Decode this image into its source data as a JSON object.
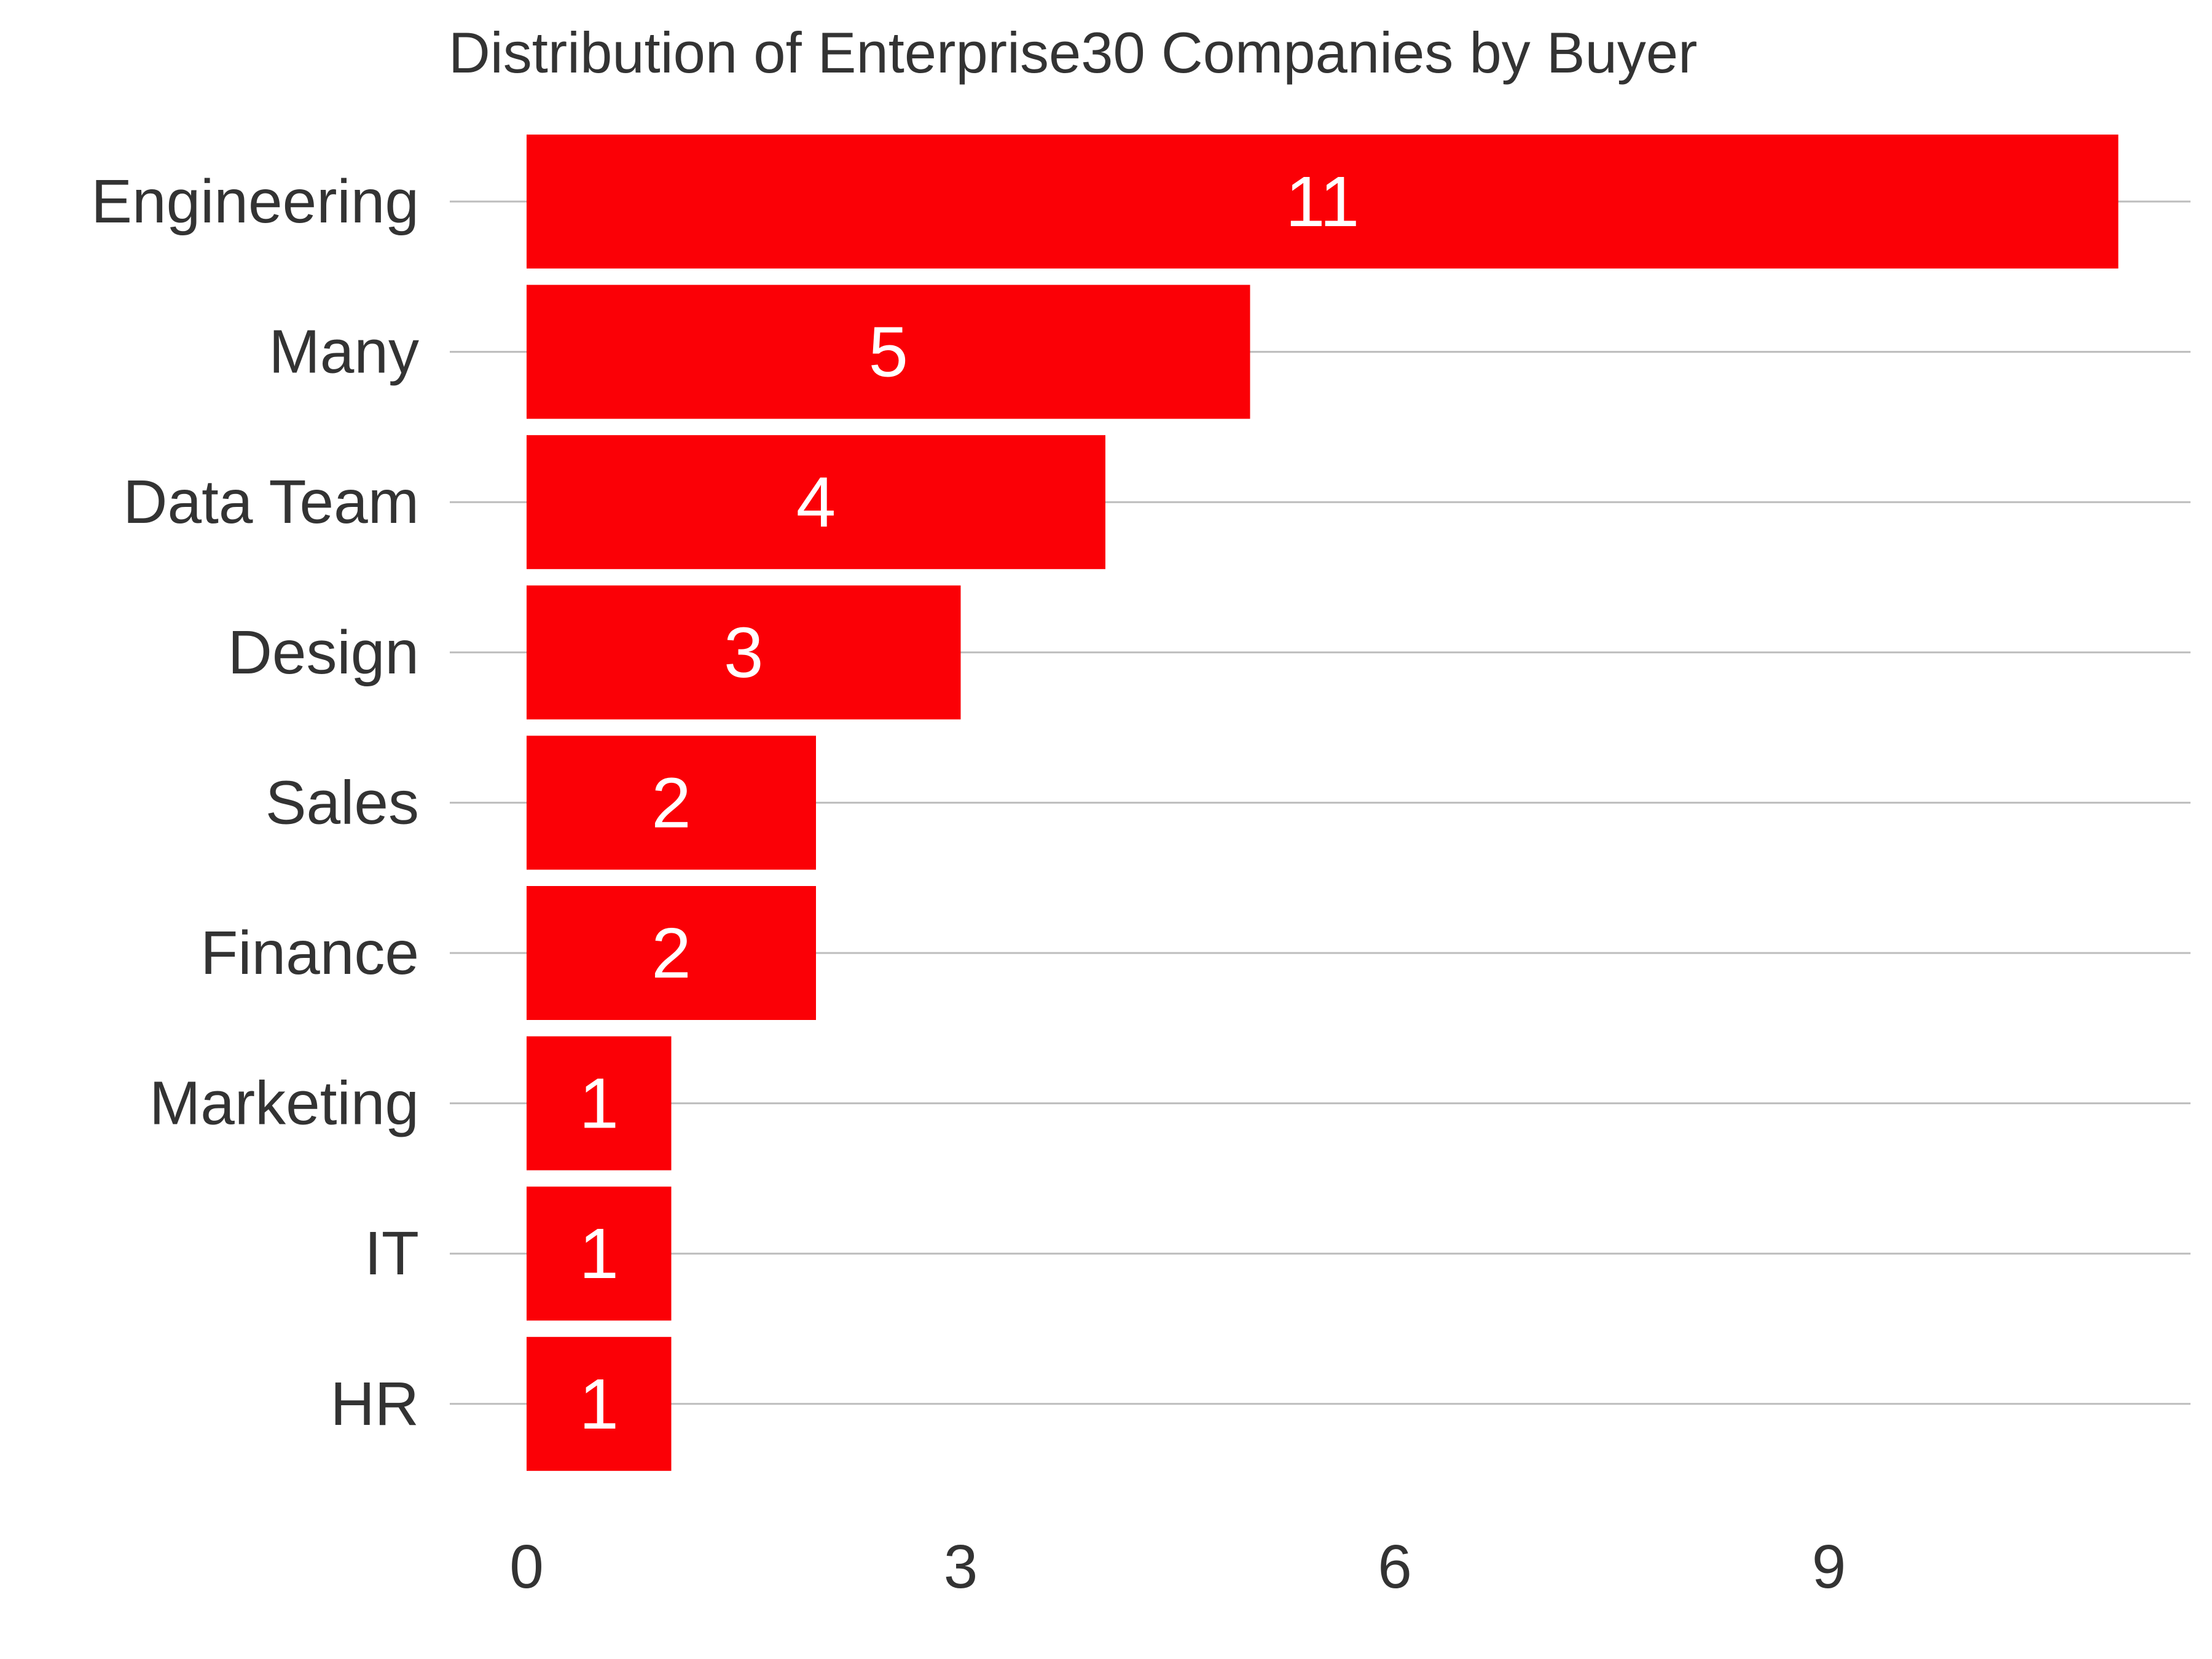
{
  "chart_data": {
    "type": "bar",
    "orientation": "horizontal",
    "title": "Distribution of Enterprise30 Companies by Buyer",
    "xlabel": "",
    "ylabel": "",
    "categories": [
      "Engineering",
      "Many",
      "Data Team",
      "Design",
      "Sales",
      "Finance",
      "Marketing",
      "IT",
      "HR"
    ],
    "values": [
      11,
      5,
      4,
      3,
      2,
      2,
      1,
      1,
      1
    ],
    "xlim": [
      0,
      11.6
    ],
    "x_ticks": [
      "0",
      "3",
      "6",
      "9"
    ],
    "grid": true,
    "grid_axis": "y",
    "data_labels": true,
    "bar_color": "#fb0006",
    "text_color": "#333333",
    "label_color": "#ffffff",
    "grid_color": "#bdbdbd"
  }
}
